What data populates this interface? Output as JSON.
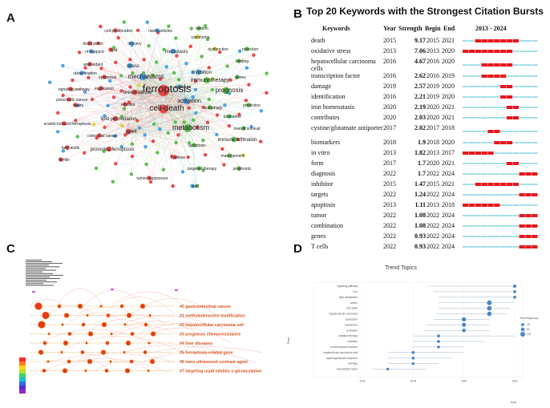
{
  "panels": {
    "a": "A",
    "b": "B",
    "c": "C",
    "d": "D"
  },
  "network": {
    "terms": [
      {
        "label": "cell-proliferation",
        "size": 5
      },
      {
        "label": "nanoparticles",
        "size": 5
      },
      {
        "label": "system",
        "size": 5
      },
      {
        "label": "carcinoma",
        "size": 5
      },
      {
        "label": "delivery",
        "size": 5
      },
      {
        "label": "doxorubicin",
        "size": 5
      },
      {
        "label": "nf-kappa-b",
        "size": 5
      },
      {
        "label": "lipid",
        "size": 5
      },
      {
        "label": "metastasis",
        "size": 6
      },
      {
        "label": "dysfunction",
        "size": 5
      },
      {
        "label": "resection",
        "size": 5
      },
      {
        "label": "binding",
        "size": 5
      },
      {
        "label": "antioxidant",
        "size": 5
      },
      {
        "label": "ubiquitination",
        "size": 5
      },
      {
        "label": "stress",
        "size": 6
      },
      {
        "label": "inhibition",
        "size": 6
      },
      {
        "label": "epidermal",
        "size": 5
      },
      {
        "label": "mechanisms",
        "size": 8
      },
      {
        "label": "immunotherapy",
        "size": 7
      },
      {
        "label": "genes",
        "size": 5
      },
      {
        "label": "signaling pathway",
        "size": 5
      },
      {
        "label": "expression",
        "size": 5
      },
      {
        "label": "breast cancer",
        "size": 6
      },
      {
        "label": "ferroptosis",
        "size": 13
      },
      {
        "label": "prognosis",
        "size": 8
      },
      {
        "label": "pancreatic cancer",
        "size": 5
      },
      {
        "label": "activation",
        "size": 7
      },
      {
        "label": "injury",
        "size": 5
      },
      {
        "label": "prediction",
        "size": 5
      },
      {
        "label": "cell-death",
        "size": 10
      },
      {
        "label": "lipid peroxidation",
        "size": 6
      },
      {
        "label": "biomarker",
        "size": 5
      },
      {
        "label": "erastin-induced ferroptosis",
        "size": 5
      },
      {
        "label": "gpx4",
        "size": 6
      },
      {
        "label": "metabolism",
        "size": 9
      },
      {
        "label": "overall survival",
        "size": 5
      },
      {
        "label": "colorectal cancer",
        "size": 5
      },
      {
        "label": "immune infiltration",
        "size": 6
      },
      {
        "label": "fatty acids",
        "size": 5
      },
      {
        "label": "promotes ferroptosis",
        "size": 6
      },
      {
        "label": "management",
        "size": 5
      },
      {
        "label": "ferritin",
        "size": 5
      },
      {
        "label": "cysteine",
        "size": 5
      },
      {
        "label": "targeted therapy",
        "size": 5
      },
      {
        "label": "prognostic",
        "size": 5
      },
      {
        "label": "tumor-suppressor",
        "size": 5
      },
      {
        "label": "nrf2",
        "size": 5
      },
      {
        "label": "apoptosis",
        "size": 5
      },
      {
        "label": "inhibitor",
        "size": 5
      },
      {
        "label": "autophagy",
        "size": 5
      },
      {
        "label": "signature",
        "size": 5
      }
    ]
  },
  "bursts": {
    "title": "Top 20 Keywords with the Strongest Citation Bursts",
    "headers": {
      "keywords": "Keywords",
      "year": "Year",
      "strength": "Strength",
      "begin": "Begin",
      "end": "End",
      "range": "2013 - 2024"
    },
    "range_start": 2013,
    "range_end": 2024,
    "colors": {
      "burst": "#e8171b",
      "base": "#62c9d4"
    },
    "rows": [
      {
        "keyword": "death",
        "year": "2015",
        "strength": "9.17",
        "begin": "2015",
        "end": "2021"
      },
      {
        "keyword": "oxidative stress",
        "year": "2013",
        "strength": "7.06",
        "begin": "2013",
        "end": "2020"
      },
      {
        "keyword": "hepatocellular carcinoma cells",
        "year": "2016",
        "strength": "4.67",
        "begin": "2016",
        "end": "2020"
      },
      {
        "keyword": "transcription factor",
        "year": "2016",
        "strength": "2.62",
        "begin": "2016",
        "end": "2019"
      },
      {
        "keyword": "damage",
        "year": "2019",
        "strength": "2.57",
        "begin": "2019",
        "end": "2020"
      },
      {
        "keyword": "identification",
        "year": "2016",
        "strength": "2.21",
        "begin": "2019",
        "end": "2020"
      },
      {
        "keyword": "iron homeostasis",
        "year": "2020",
        "strength": "2.19",
        "begin": "2020",
        "end": "2021"
      },
      {
        "keyword": "contributes",
        "year": "2020",
        "strength": "2.03",
        "begin": "2020",
        "end": "2021"
      },
      {
        "keyword": "cystine/glutamate antiporter",
        "year": "2017",
        "strength": "2.02",
        "begin": "2017",
        "end": "2018"
      },
      {
        "keyword": "biomarkers",
        "year": "2018",
        "strength": "1.9",
        "begin": "2018",
        "end": "2020"
      },
      {
        "keyword": "in vitro",
        "year": "2013",
        "strength": "1.82",
        "begin": "2013",
        "end": "2017"
      },
      {
        "keyword": "form",
        "year": "2017",
        "strength": "1.7",
        "begin": "2020",
        "end": "2021"
      },
      {
        "keyword": "diagnosis",
        "year": "2022",
        "strength": "1.7",
        "begin": "2022",
        "end": "2024"
      },
      {
        "keyword": "inhibitor",
        "year": "2015",
        "strength": "1.47",
        "begin": "2015",
        "end": "2021"
      },
      {
        "keyword": "targets",
        "year": "2022",
        "strength": "1.24",
        "begin": "2022",
        "end": "2024"
      },
      {
        "keyword": "apoptosis",
        "year": "2013",
        "strength": "1.11",
        "begin": "2013",
        "end": "2018"
      },
      {
        "keyword": "tumor",
        "year": "2022",
        "strength": "1.08",
        "begin": "2022",
        "end": "2024"
      },
      {
        "keyword": "combination",
        "year": "2022",
        "strength": "1.08",
        "begin": "2022",
        "end": "2024"
      },
      {
        "keyword": "genes",
        "year": "2022",
        "strength": "0.93",
        "begin": "2022",
        "end": "2024"
      },
      {
        "keyword": "T cells",
        "year": "2022",
        "strength": "0.93",
        "begin": "2022",
        "end": "2024"
      }
    ]
  },
  "clusters": {
    "items": [
      {
        "label": "#0 gastrointestinal cancer"
      },
      {
        "label": "#1 methyladenosine modification"
      },
      {
        "label": "#2 hepatocellular carcinoma cell"
      },
      {
        "label": "#3 prognosis chemoresistance"
      },
      {
        "label": "#4 liver diseases"
      },
      {
        "label": "#5 ferroptosis-related gene"
      },
      {
        "label": "#6 nano ultrasound contrast agent"
      },
      {
        "label": "#7 targeting usp8 inhibits o-glcnacylation"
      }
    ]
  },
  "chart_data": {
    "type": "scatter",
    "title": "Trend Topics",
    "xlabel": "Year",
    "ylabel": "Term",
    "xlim": [
      2016,
      2022
    ],
    "x_ticks": [
      "2016",
      "2018",
      "2020",
      "2022"
    ],
    "legend": {
      "title": "Term frequency",
      "entries": [
        "25",
        "50",
        "100"
      ],
      "position": "right"
    },
    "point_color": "#4b86c5",
    "terms": [
      {
        "term": "signaling pathway",
        "start": 2018.6,
        "median": 2022.0,
        "end": 2022.0,
        "freq": 30
      },
      {
        "term": "iron",
        "start": 2018.8,
        "median": 2022.0,
        "end": 2022.0,
        "freq": 25
      },
      {
        "term": "lipid metabolism",
        "start": 2019.0,
        "median": 2022.0,
        "end": 2022.0,
        "freq": 25
      },
      {
        "term": "cancer",
        "start": 2019.0,
        "median": 2021.0,
        "end": 2022.0,
        "freq": 100
      },
      {
        "term": "cell-death",
        "start": 2019.0,
        "median": 2021.0,
        "end": 2021.8,
        "freq": 90
      },
      {
        "term": "hepatocellular carcinoma",
        "start": 2018.9,
        "median": 2021.0,
        "end": 2021.7,
        "freq": 80
      },
      {
        "term": "expression",
        "start": 2018.8,
        "median": 2020.0,
        "end": 2021.0,
        "freq": 70
      },
      {
        "term": "metabolism",
        "start": 2018.5,
        "median": 2020.0,
        "end": 2021.0,
        "freq": 60
      },
      {
        "term": "activation",
        "start": 2018.4,
        "median": 2020.0,
        "end": 2021.0,
        "freq": 45
      },
      {
        "term": "radiation therapy",
        "start": 2018.0,
        "median": 2019.0,
        "end": 2022.0,
        "freq": 25
      },
      {
        "term": "oxidation",
        "start": 2018.0,
        "median": 2019.0,
        "end": 2020.8,
        "freq": 22
      },
      {
        "term": "mesenchymal transition",
        "start": 2018.0,
        "median": 2019.0,
        "end": 2020.0,
        "freq": 20
      },
      {
        "term": "hepatocellular carcinoma cells",
        "start": 2017.0,
        "median": 2018.0,
        "end": 2020.0,
        "freq": 25
      },
      {
        "term": "cystine/glutamate antiporter",
        "start": 2017.0,
        "median": 2018.0,
        "end": 2019.5,
        "freq": 22
      },
      {
        "term": "damage",
        "start": 2017.0,
        "median": 2018.0,
        "end": 2019.0,
        "freq": 20
      },
      {
        "term": "transcription factor",
        "start": 2016.4,
        "median": 2017.0,
        "end": 2018.5,
        "freq": 18
      }
    ]
  }
}
